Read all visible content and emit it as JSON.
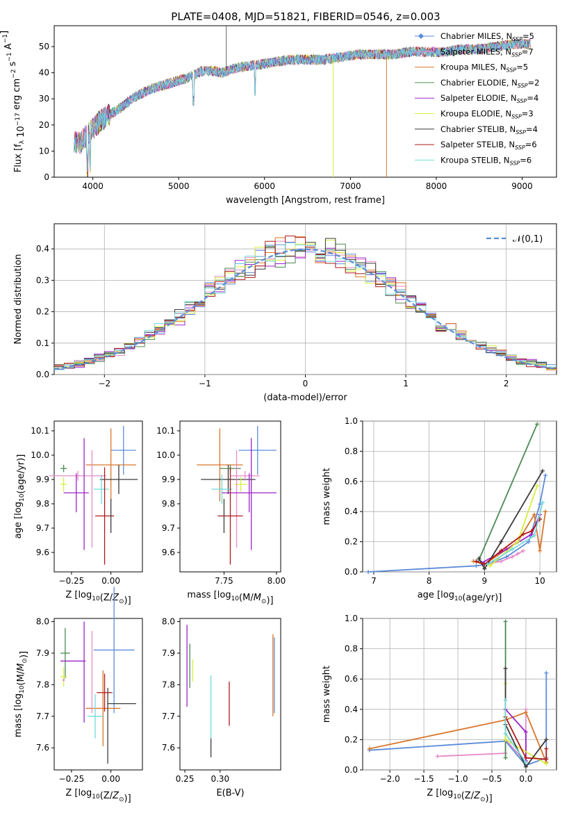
{
  "title": "PLATE=0408, MJD=51821, FIBERID=0546, z=0.003",
  "colors": {
    "blue": "#5b8bd9",
    "pink": "#e58ac9",
    "orange": "#d9762a",
    "green": "#4a8a52",
    "purple": "#9b22c9",
    "lime": "#d6ee3a",
    "dark": "#3a3a3a",
    "red": "#b01818",
    "cyan": "#72d9d9"
  },
  "chart_data": [
    {
      "id": "spectrum",
      "type": "line",
      "xlabel": "wavelength [Angstrom, rest frame]",
      "ylabel": "Flux [f_λ 10^-17 erg cm^-2 s^-1 A^-1]",
      "xlim": [
        3550,
        9400
      ],
      "ylim": [
        0,
        58
      ],
      "xticks": [
        4000,
        5000,
        6000,
        7000,
        8000,
        9000
      ],
      "yticks": [
        0,
        10,
        20,
        30,
        40,
        50
      ],
      "x": [
        3780,
        3850,
        3950,
        4100,
        4300,
        4500,
        4700,
        4900,
        5100,
        5300,
        5500,
        5700,
        5900,
        6100,
        6300,
        6500,
        6700,
        6900,
        7100,
        7300,
        7500,
        7700,
        7900,
        8100,
        8300,
        8500,
        8700,
        8900,
        9100
      ],
      "y": [
        14,
        13,
        17,
        22,
        26,
        31,
        34,
        36,
        38,
        41,
        40,
        42,
        43,
        44,
        45,
        45,
        45,
        46,
        47,
        47,
        47,
        48,
        48,
        48,
        49,
        49,
        50,
        51,
        51
      ],
      "series": [
        {
          "name": "Chabrier MILES, N_SSP=5",
          "color": "blue"
        },
        {
          "name": "Salpeter MILES, N_SSP=7",
          "color": "pink"
        },
        {
          "name": "Kroupa MILES, N_SSP=5",
          "color": "orange"
        },
        {
          "name": "Chabrier ELODIE, N_SSP=2",
          "color": "green"
        },
        {
          "name": "Salpeter ELODIE, N_SSP=4",
          "color": "purple"
        },
        {
          "name": "Kroupa ELODIE, N_SSP=3",
          "color": "lime"
        },
        {
          "name": "Chabrier STELIB, N_SSP=4",
          "color": "dark"
        },
        {
          "name": "Salpeter STELIB, N_SSP=6",
          "color": "red"
        },
        {
          "name": "Kroupa STELIB, N_SSP=6",
          "color": "cyan"
        }
      ],
      "legend_position": "right"
    },
    {
      "id": "residuals",
      "type": "line",
      "xlabel": "(data-model)/error",
      "ylabel": "Normed distribution",
      "xlim": [
        -2.5,
        2.5
      ],
      "ylim": [
        0,
        0.48
      ],
      "xticks": [
        -2,
        -1,
        0,
        1,
        2
      ],
      "yticks": [
        0.0,
        0.1,
        0.2,
        0.3,
        0.4
      ],
      "grid": true,
      "reference": {
        "name": "𝒩(0,1)",
        "mean": 0,
        "sigma": 1
      },
      "histogram_bin_width": 0.1,
      "legend_position": "top-right"
    },
    {
      "id": "z-age",
      "type": "scatter",
      "xlabel": "Z [log10(Z/Z⊙)]",
      "ylabel": "age  [log10(age/yr)]",
      "xlim": [
        -0.36,
        0.2
      ],
      "ylim": [
        9.52,
        10.14
      ],
      "xticks": [
        -0.25,
        0.0
      ],
      "yticks": [
        9.6,
        9.7,
        9.8,
        9.9,
        10.0,
        10.1
      ],
      "points": [
        {
          "color": "blue",
          "x": 0.08,
          "xerr": 0.08,
          "y": 10.02,
          "yerr": 0.1
        },
        {
          "color": "orange",
          "x": 0.0,
          "xerr": 0.16,
          "y": 9.96,
          "yerr": 0.15
        },
        {
          "color": "dark",
          "x": 0.05,
          "xerr": 0.12,
          "y": 9.9,
          "yerr": 0.06
        },
        {
          "color": "green",
          "x": -0.3,
          "xerr": 0.02,
          "y": 9.945,
          "yerr": 0.015
        },
        {
          "color": "cyan",
          "x": -0.06,
          "xerr": 0.05,
          "y": 9.86,
          "yerr": 0.06
        },
        {
          "color": "lime",
          "x": -0.3,
          "xerr": 0.02,
          "y": 9.88,
          "yerr": 0.03
        },
        {
          "color": "pink",
          "x": -0.21,
          "xerr": 0.18,
          "y": 9.915,
          "yerr": 0.02
        },
        {
          "color": "pink",
          "x": -0.12,
          "xerr": 0.0,
          "y": 9.82,
          "yerr": 0.2
        },
        {
          "color": "purple",
          "x": -0.22,
          "xerr": 0.08,
          "y": 9.845,
          "yerr": 0.08
        },
        {
          "color": "purple",
          "x": -0.17,
          "xerr": 0.0,
          "y": 9.84,
          "yerr": 0.23
        },
        {
          "color": "red",
          "x": -0.04,
          "xerr": 0.06,
          "y": 9.75,
          "yerr": 0.2
        },
        {
          "color": "dark",
          "x": 0.0,
          "xerr": 0.0,
          "y": 9.75,
          "yerr": 0.07
        }
      ]
    },
    {
      "id": "mass-age",
      "type": "scatter",
      "xlabel": "mass [log10(M/M⊙)]",
      "ylabel": "",
      "xlim": [
        7.54,
        8.02
      ],
      "ylim": [
        9.52,
        10.14
      ],
      "xticks": [
        7.75,
        8.0
      ],
      "yticks": [
        9.6,
        9.7,
        9.8,
        9.9,
        10.0,
        10.1
      ],
      "points": [
        {
          "color": "blue",
          "x": 7.91,
          "xerr": 0.09,
          "y": 10.02,
          "yerr": 0.1
        },
        {
          "color": "orange",
          "x": 7.73,
          "xerr": 0.11,
          "y": 9.96,
          "yerr": 0.15
        },
        {
          "color": "dark",
          "x": 7.77,
          "xerr": 0.13,
          "y": 9.9,
          "yerr": 0.06
        },
        {
          "color": "green",
          "x": 7.78,
          "xerr": 0.05,
          "y": 9.945,
          "yerr": 0.015
        },
        {
          "color": "cyan",
          "x": 7.74,
          "xerr": 0.05,
          "y": 9.86,
          "yerr": 0.06
        },
        {
          "color": "lime",
          "x": 7.83,
          "xerr": 0.03,
          "y": 9.88,
          "yerr": 0.03
        },
        {
          "color": "pink",
          "x": 7.85,
          "xerr": 0.07,
          "y": 9.915,
          "yerr": 0.02
        },
        {
          "color": "pink",
          "x": 7.81,
          "xerr": 0.0,
          "y": 9.82,
          "yerr": 0.2
        },
        {
          "color": "purple",
          "x": 7.87,
          "xerr": 0.13,
          "y": 9.845,
          "yerr": 0.08
        },
        {
          "color": "purple",
          "x": 7.88,
          "xerr": 0.0,
          "y": 9.84,
          "yerr": 0.23
        },
        {
          "color": "red",
          "x": 7.78,
          "xerr": 0.06,
          "y": 9.75,
          "yerr": 0.2
        },
        {
          "color": "dark",
          "x": 7.75,
          "xerr": 0.0,
          "y": 9.75,
          "yerr": 0.07
        }
      ]
    },
    {
      "id": "age-weight",
      "type": "line",
      "xlabel": "age  [log10(age/yr)]",
      "ylabel": "mass weight",
      "xlim": [
        6.8,
        10.3
      ],
      "ylim": [
        0,
        1.0
      ],
      "xticks": [
        7,
        8,
        9,
        10
      ],
      "yticks": [
        0.0,
        0.2,
        0.4,
        0.6,
        0.8,
        1.0
      ],
      "grid": true,
      "series": [
        {
          "color": "blue",
          "x": [
            6.9,
            8.85,
            9.05,
            9.4,
            9.8,
            10.0,
            10.1
          ],
          "y": [
            0.0,
            0.04,
            0.05,
            0.1,
            0.2,
            0.45,
            0.64
          ]
        },
        {
          "color": "pink",
          "x": [
            9.0,
            9.3,
            9.5,
            9.6,
            9.7
          ],
          "y": [
            0.05,
            0.07,
            0.1,
            0.12,
            0.14
          ]
        },
        {
          "color": "orange",
          "x": [
            8.8,
            9.0,
            9.6,
            9.9,
            10.0,
            10.1
          ],
          "y": [
            0.07,
            0.05,
            0.2,
            0.38,
            0.14,
            0.4
          ]
        },
        {
          "color": "green",
          "x": [
            8.9,
            9.95
          ],
          "y": [
            0.08,
            0.98
          ]
        },
        {
          "color": "purple",
          "x": [
            8.95,
            9.4,
            9.85,
            10.0
          ],
          "y": [
            0.06,
            0.15,
            0.25,
            0.38
          ]
        },
        {
          "color": "lime",
          "x": [
            9.1,
            9.6,
            9.95
          ],
          "y": [
            0.04,
            0.2,
            0.57
          ]
        },
        {
          "color": "dark",
          "x": [
            8.9,
            9.0,
            9.3,
            10.05
          ],
          "y": [
            0.09,
            0.02,
            0.2,
            0.67
          ]
        },
        {
          "color": "red",
          "x": [
            8.85,
            9.0,
            9.3,
            9.7,
            9.85,
            10.0
          ],
          "y": [
            0.07,
            0.05,
            0.14,
            0.25,
            0.27,
            0.35
          ]
        },
        {
          "color": "cyan",
          "x": [
            9.05,
            9.5,
            9.9,
            10.05
          ],
          "y": [
            0.05,
            0.15,
            0.24,
            0.46
          ]
        }
      ]
    },
    {
      "id": "z-mass",
      "type": "scatter",
      "xlabel": "Z [log10(Z/Z⊙)]",
      "ylabel": "mass [log10(M/M⊙)]",
      "xlim": [
        -0.36,
        0.2
      ],
      "ylim": [
        7.53,
        8.01
      ],
      "xticks": [
        -0.25,
        0.0
      ],
      "yticks": [
        7.6,
        7.7,
        7.8,
        7.9,
        8.0
      ],
      "points": [
        {
          "color": "blue",
          "x": 0.02,
          "xerr": 0.13,
          "y": 7.91,
          "yerr": 0.2
        },
        {
          "color": "orange",
          "x": -0.05,
          "xerr": 0.11,
          "y": 7.725,
          "yerr": 0.12
        },
        {
          "color": "dark",
          "x": 0.07,
          "xerr": 0.09,
          "y": 7.74,
          "yerr": 0.0
        },
        {
          "color": "dark",
          "x": -0.02,
          "xerr": 0.0,
          "y": 7.67,
          "yerr": 0.12
        },
        {
          "color": "green",
          "x": -0.29,
          "xerr": 0.03,
          "y": 7.9,
          "yerr": 0.08
        },
        {
          "color": "cyan",
          "x": -0.1,
          "xerr": 0.05,
          "y": 7.7,
          "yerr": 0.07
        },
        {
          "color": "lime",
          "x": -0.3,
          "xerr": 0.02,
          "y": 7.825,
          "yerr": 0.03
        },
        {
          "color": "pink",
          "x": -0.3,
          "xerr": 0.0,
          "y": 7.815,
          "yerr": 0.0
        },
        {
          "color": "pink",
          "x": -0.12,
          "xerr": 0.0,
          "y": 7.84,
          "yerr": 0.13
        },
        {
          "color": "purple",
          "x": -0.24,
          "xerr": 0.08,
          "y": 7.875,
          "yerr": 0.0
        },
        {
          "color": "purple",
          "x": -0.17,
          "xerr": 0.0,
          "y": 7.84,
          "yerr": 0.16
        },
        {
          "color": "red",
          "x": -0.04,
          "xerr": 0.05,
          "y": 7.775,
          "yerr": 0.06
        }
      ]
    },
    {
      "id": "ebv-mass",
      "type": "scatter",
      "xlabel": "E(B-V)",
      "ylabel": "",
      "xlim": [
        0.243,
        0.386
      ],
      "ylim": [
        7.53,
        8.01
      ],
      "xticks": [
        0.25,
        0.3
      ],
      "yticks": [
        7.6,
        7.7,
        7.8,
        7.9,
        8.0
      ],
      "points": [
        {
          "color": "blue",
          "x": 0.377,
          "xerr": 0.0,
          "y": 7.83,
          "yerr": 0.12
        },
        {
          "color": "orange",
          "x": 0.375,
          "xerr": 0.0,
          "y": 7.83,
          "yerr": 0.13
        },
        {
          "color": "dark",
          "x": 0.287,
          "xerr": 0.0,
          "y": 7.6,
          "yerr": 0.03
        },
        {
          "color": "green",
          "x": 0.257,
          "xerr": 0.0,
          "y": 7.86,
          "yerr": 0.07
        },
        {
          "color": "cyan",
          "x": 0.287,
          "xerr": 0.0,
          "y": 7.73,
          "yerr": 0.1
        },
        {
          "color": "lime",
          "x": 0.261,
          "xerr": 0.0,
          "y": 7.845,
          "yerr": 0.035
        },
        {
          "color": "purple",
          "x": 0.253,
          "xerr": 0.0,
          "y": 7.86,
          "yerr": 0.13
        },
        {
          "color": "red",
          "x": 0.313,
          "xerr": 0.0,
          "y": 7.74,
          "yerr": 0.07
        }
      ]
    },
    {
      "id": "z-weight",
      "type": "line",
      "xlabel": "Z [log10(Z/Z⊙)]",
      "ylabel": "mass weight",
      "xlim": [
        -2.4,
        0.45
      ],
      "ylim": [
        0,
        1.0
      ],
      "xticks": [
        -2.0,
        -1.5,
        -1.0,
        -0.5,
        0.0
      ],
      "yticks": [
        0.0,
        0.2,
        0.4,
        0.6,
        0.8,
        1.0
      ],
      "grid": true,
      "series": [
        {
          "color": "blue",
          "x": [
            -2.3,
            -0.3,
            0.0,
            0.3,
            0.3
          ],
          "y": [
            0.13,
            0.19,
            0.03,
            0.08,
            0.64
          ]
        },
        {
          "color": "pink",
          "x": [
            -1.3,
            -0.3,
            -0.3,
            0.0,
            0.0
          ],
          "y": [
            0.09,
            0.11,
            0.2,
            0.05,
            0.4
          ]
        },
        {
          "color": "orange",
          "x": [
            -2.3,
            -0.3,
            0.0,
            0.3,
            0.3
          ],
          "y": [
            0.14,
            0.33,
            0.38,
            0.05,
            0.05
          ]
        },
        {
          "color": "green",
          "x": [
            -0.3,
            -0.3
          ],
          "y": [
            0.98,
            0.08
          ]
        },
        {
          "color": "purple",
          "x": [
            -0.3,
            0.0,
            0.0
          ],
          "y": [
            0.4,
            0.25,
            0.06
          ]
        },
        {
          "color": "lime",
          "x": [
            -0.3,
            -0.3,
            0.3
          ],
          "y": [
            0.57,
            0.2,
            0.04
          ]
        },
        {
          "color": "dark",
          "x": [
            -0.3,
            -0.3,
            0.0,
            0.3
          ],
          "y": [
            0.67,
            0.3,
            0.02,
            0.2
          ]
        },
        {
          "color": "red",
          "x": [
            -0.3,
            0.0,
            0.3,
            0.3
          ],
          "y": [
            0.35,
            0.08,
            0.07,
            0.14
          ]
        },
        {
          "color": "cyan",
          "x": [
            -0.3,
            -0.3,
            0.0
          ],
          "y": [
            0.46,
            0.24,
            0.05
          ]
        }
      ]
    }
  ]
}
